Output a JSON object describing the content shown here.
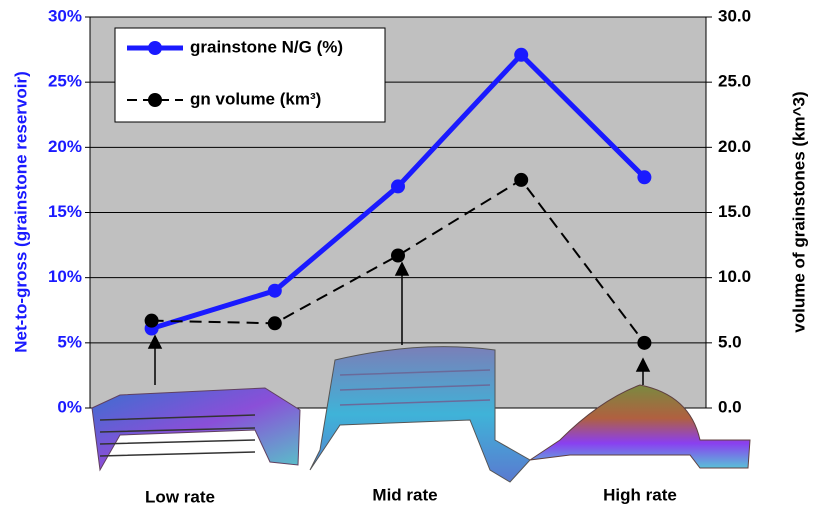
{
  "chart_data": {
    "type": "line",
    "categories": [
      null,
      null,
      null,
      null,
      null
    ],
    "series": [
      {
        "name": "grainstone N/G (%)",
        "color": "#1a1aff",
        "values": [
          6.1,
          9.0,
          17.0,
          27.1,
          17.7
        ]
      },
      {
        "name": "gn volume (km³)",
        "color": "#000000",
        "axis": "y2",
        "dashed": true,
        "values": [
          6.7,
          6.5,
          11.7,
          17.5,
          5.0
        ]
      }
    ],
    "ylabel": "Net-to-gross (grainstone reservoir)",
    "y2label": "volume of grainstones (km^3)",
    "ylim": [
      0,
      30
    ],
    "yticks": [
      {
        "value": 0,
        "label": "0%"
      },
      {
        "value": 5,
        "label": "5%"
      },
      {
        "value": 10,
        "label": "10%"
      },
      {
        "value": 15,
        "label": "15%"
      },
      {
        "value": 20,
        "label": "20%"
      },
      {
        "value": 25,
        "label": "25%"
      },
      {
        "value": 30,
        "label": "30%"
      }
    ],
    "y2lim": [
      0,
      30
    ],
    "y2ticks": [
      {
        "value": 0,
        "label": "0.0"
      },
      {
        "value": 5,
        "label": "5.0"
      },
      {
        "value": 10,
        "label": "10.0"
      },
      {
        "value": 15,
        "label": "15.0"
      },
      {
        "value": 20,
        "label": "20.0"
      },
      {
        "value": 25,
        "label": "25.0"
      },
      {
        "value": 30,
        "label": "30.0"
      }
    ],
    "annotations": [
      "Low rate",
      "Mid rate",
      "High rate"
    ],
    "grid": true,
    "legend": "upper left"
  }
}
